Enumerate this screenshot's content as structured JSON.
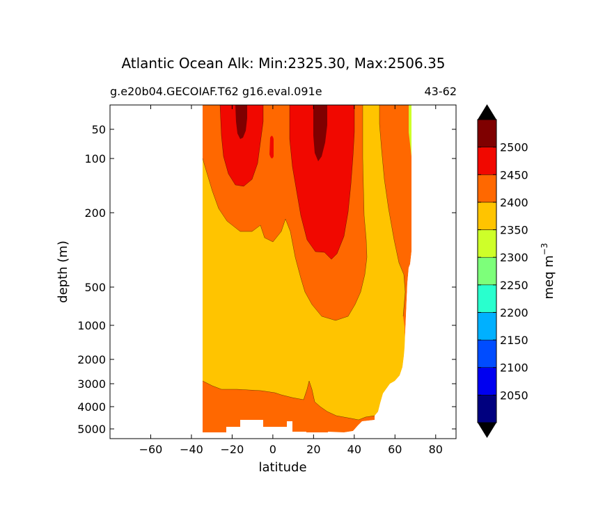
{
  "chart_data": {
    "type": "contour",
    "title": "Atlantic Ocean Alk: Min:2325.30, Max:2506.35",
    "subtitle_left": "g.e20b04.GECOIAF.T62 g16.eval.091e",
    "subtitle_right": "43-62",
    "xlabel": "latitude",
    "ylabel": "depth (m)",
    "xlim": [
      -80,
      90
    ],
    "x_ticks": [
      -60,
      -40,
      -20,
      0,
      20,
      40,
      60,
      80
    ],
    "x_tick_labels": [
      "−60",
      "−40",
      "−20",
      "0",
      "20",
      "40",
      "60",
      "80"
    ],
    "y_scale": "piecewise-log (inverted)",
    "y_ticks": [
      50,
      100,
      200,
      500,
      1000,
      2000,
      3000,
      4000,
      5000
    ],
    "y_tick_labels": [
      "50",
      "100",
      "200",
      "500",
      "1000",
      "2000",
      "3000",
      "4000",
      "5000"
    ],
    "colorbar": {
      "label": "meq m",
      "label_sup": "−3",
      "levels": [
        2000,
        2050,
        2100,
        2150,
        2200,
        2250,
        2300,
        2350,
        2400,
        2450,
        2500,
        2550
      ],
      "tick_labels": [
        "2050",
        "2100",
        "2150",
        "2200",
        "2250",
        "2300",
        "2350",
        "2400",
        "2450",
        "2500"
      ],
      "colors": [
        "#00007f",
        "#0000f0",
        "#004cff",
        "#00b0ff",
        "#29ffce",
        "#7dff7a",
        "#ceff29",
        "#ffc400",
        "#ff6800",
        "#f10800",
        "#7f0000"
      ],
      "extend": "both",
      "under_color": "#000000",
      "over_color": "#000000"
    },
    "field_colors": {
      "band_2300_2350": "#ceff29",
      "band_2350_2400": "#ffc400",
      "band_2400_2450": "#ff6800",
      "band_2450_2500": "#f10800",
      "band_2500_2550": "#7f0000"
    }
  }
}
